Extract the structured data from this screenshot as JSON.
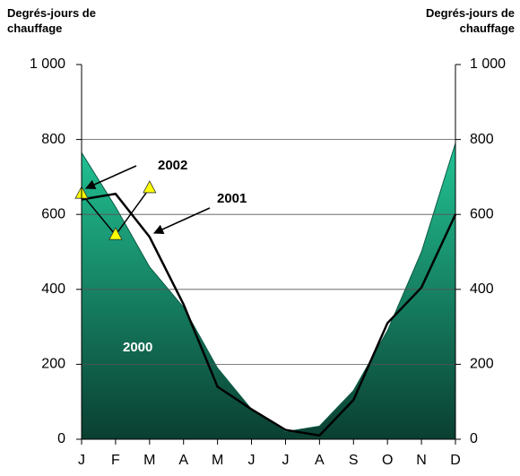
{
  "chart_data": {
    "type": "area_line",
    "ylabel": "Degrés-jours de chauffage",
    "y2label": "Degrés-jours de chauffage",
    "categories": [
      "J",
      "F",
      "M",
      "A",
      "M",
      "J",
      "J",
      "A",
      "S",
      "O",
      "N",
      "D"
    ],
    "ylim": [
      0,
      1000
    ],
    "yticks": [
      0,
      200,
      400,
      600,
      800,
      {
        "value": 1000,
        "label": "1 000"
      }
    ],
    "y2lim": [
      0,
      1000
    ],
    "y2ticks": [
      0,
      200,
      400,
      600,
      800,
      {
        "value": 1000,
        "label": "1 000"
      }
    ],
    "grid": true,
    "series": [
      {
        "name": "2000",
        "kind": "area",
        "color": "#15936f",
        "values": [
          765,
          620,
          460,
          352,
          190,
          80,
          20,
          35,
          130,
          290,
          500,
          790
        ]
      },
      {
        "name": "2001",
        "kind": "line",
        "color": "#000000",
        "values": [
          640,
          655,
          540,
          360,
          140,
          80,
          25,
          10,
          105,
          310,
          405,
          600
        ]
      },
      {
        "name": "2002",
        "kind": "triangles",
        "color": "#ffff00",
        "values": [
          655,
          545,
          670,
          null,
          null,
          null,
          null,
          null,
          null,
          null,
          null,
          null
        ]
      }
    ]
  }
}
